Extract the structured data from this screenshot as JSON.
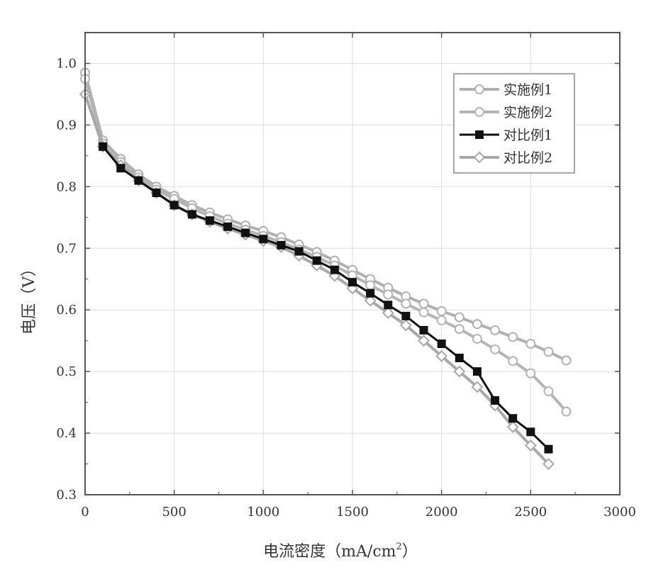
{
  "chart_data": {
    "type": "line",
    "xlabel": "电流密度（mA/cm",
    "xlabel_sup": "2",
    "xlabel_close": "）",
    "ylabel": "电压（V）",
    "xlim": [
      0,
      3000
    ],
    "ylim": [
      0.3,
      1.05
    ],
    "x_ticks": [
      0,
      500,
      1000,
      1500,
      2000,
      2500,
      3000
    ],
    "y_ticks": [
      0.3,
      0.4,
      0.5,
      0.6,
      0.7,
      0.8,
      0.9,
      1.0
    ],
    "x_tick_labels": [
      "0",
      "500",
      "1000",
      "1500",
      "2000",
      "2500",
      "3000"
    ],
    "y_tick_labels": [
      "0.3",
      "0.4",
      "0.5",
      "0.6",
      "0.7",
      "0.8",
      "0.9",
      "1.0"
    ],
    "grid": true,
    "legend_position": "top-right",
    "series": [
      {
        "name": "实施例1",
        "color": "#b0b0b0",
        "marker": "circle-open",
        "x": [
          0,
          100,
          200,
          300,
          400,
          500,
          600,
          700,
          800,
          900,
          1000,
          1100,
          1200,
          1300,
          1400,
          1500,
          1600,
          1700,
          1800,
          1900,
          2000,
          2100,
          2200,
          2300,
          2400,
          2500,
          2600,
          2700
        ],
        "y": [
          0.985,
          0.875,
          0.845,
          0.82,
          0.8,
          0.785,
          0.77,
          0.758,
          0.747,
          0.737,
          0.728,
          0.718,
          0.706,
          0.694,
          0.68,
          0.665,
          0.65,
          0.636,
          0.622,
          0.61,
          0.598,
          0.588,
          0.577,
          0.567,
          0.556,
          0.545,
          0.532,
          0.518
        ]
      },
      {
        "name": "实施例2",
        "color": "#b4b4b4",
        "marker": "circle-open",
        "x": [
          0,
          100,
          200,
          300,
          400,
          500,
          600,
          700,
          800,
          900,
          1000,
          1100,
          1200,
          1300,
          1400,
          1500,
          1600,
          1700,
          1800,
          1900,
          2000,
          2100,
          2200,
          2300,
          2400,
          2500,
          2600,
          2700
        ],
        "y": [
          0.975,
          0.87,
          0.84,
          0.815,
          0.795,
          0.78,
          0.765,
          0.752,
          0.74,
          0.73,
          0.72,
          0.71,
          0.698,
          0.686,
          0.672,
          0.656,
          0.64,
          0.625,
          0.61,
          0.596,
          0.583,
          0.569,
          0.553,
          0.536,
          0.517,
          0.497,
          0.468,
          0.435
        ]
      },
      {
        "name": "对比例1",
        "color": "#111111",
        "marker": "square-filled",
        "x": [
          100,
          200,
          300,
          400,
          500,
          600,
          700,
          800,
          900,
          1000,
          1100,
          1200,
          1300,
          1400,
          1500,
          1600,
          1700,
          1800,
          1900,
          2000,
          2100,
          2200,
          2300,
          2400,
          2500,
          2600
        ],
        "y": [
          0.865,
          0.83,
          0.81,
          0.79,
          0.77,
          0.755,
          0.745,
          0.735,
          0.725,
          0.715,
          0.705,
          0.695,
          0.68,
          0.665,
          0.645,
          0.627,
          0.608,
          0.59,
          0.567,
          0.545,
          0.522,
          0.5,
          0.453,
          0.424,
          0.402,
          0.374
        ]
      },
      {
        "name": "对比例2",
        "color": "#a8a8a8",
        "marker": "diamond-open",
        "x": [
          0,
          100,
          200,
          300,
          400,
          500,
          600,
          700,
          800,
          900,
          1000,
          1100,
          1200,
          1300,
          1400,
          1500,
          1600,
          1700,
          1800,
          1900,
          2000,
          2100,
          2200,
          2300,
          2400,
          2500,
          2600
        ],
        "y": [
          0.95,
          0.865,
          0.835,
          0.81,
          0.79,
          0.77,
          0.755,
          0.743,
          0.732,
          0.722,
          0.712,
          0.702,
          0.688,
          0.672,
          0.655,
          0.635,
          0.615,
          0.595,
          0.575,
          0.55,
          0.525,
          0.5,
          0.475,
          0.445,
          0.41,
          0.38,
          0.35
        ]
      }
    ]
  }
}
